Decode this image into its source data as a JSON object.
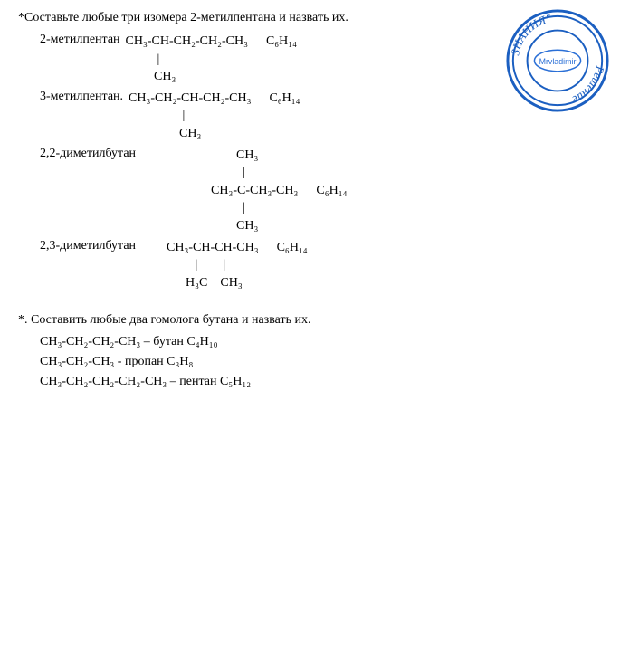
{
  "title1": "*Составьте любые три изомера 2-метилпентана и назвать их.",
  "isomers": [
    {
      "name": "2-метилпентан",
      "lines": [
        "CH₃-CH-CH₂-CH₂-CH₃",
        "          |",
        "         CH₃"
      ],
      "mol": "C₆H₁₄",
      "indent": ""
    },
    {
      "name": "3-метилпентан.",
      "lines": [
        "CH₃-CH₂-CH-CH₂-CH₃",
        "                 |",
        "                CH₃"
      ],
      "mol": "C₆H₁₄",
      "indent": ""
    },
    {
      "name": "2,2-диметилбутан",
      "lines": [
        "            CH₃",
        "              |",
        "    CH₃-C-CH₃-CH₃",
        "              |",
        "            CH₃"
      ],
      "mol": "C₆H₁₄",
      "indent": "                  "
    },
    {
      "name": "2,3-диметилбутан",
      "lines": [
        "CH₃-CH-CH-CH₃",
        "         |        |",
        "      H₃C    CH₃"
      ],
      "mol": "C₆H₁₄",
      "indent": "        "
    }
  ],
  "title2": "*. Составить любые два гомолога бутана и назвать их.",
  "homologs": [
    {
      "text": "CH₃-CH₂-CH₂-CH₃ – бутан C₄H₁₀"
    },
    {
      "text": "CH₃-CH₂-CH₃ - пропан C₃H₈"
    },
    {
      "text": "CH₃-CH₂-CH₂-CH₂-CH₃ – пентан C₅H₁₂"
    }
  ],
  "stamp": {
    "outerText": "ЗНАНИЯ\"  Решение  \"",
    "inner": "Mrvladimir",
    "color": "#1b5fc1",
    "innerColor": "#2a6fd6",
    "bg": "#ffffff"
  },
  "colors": {
    "text": "#000000",
    "background": "#ffffff"
  },
  "fontsize": 14
}
